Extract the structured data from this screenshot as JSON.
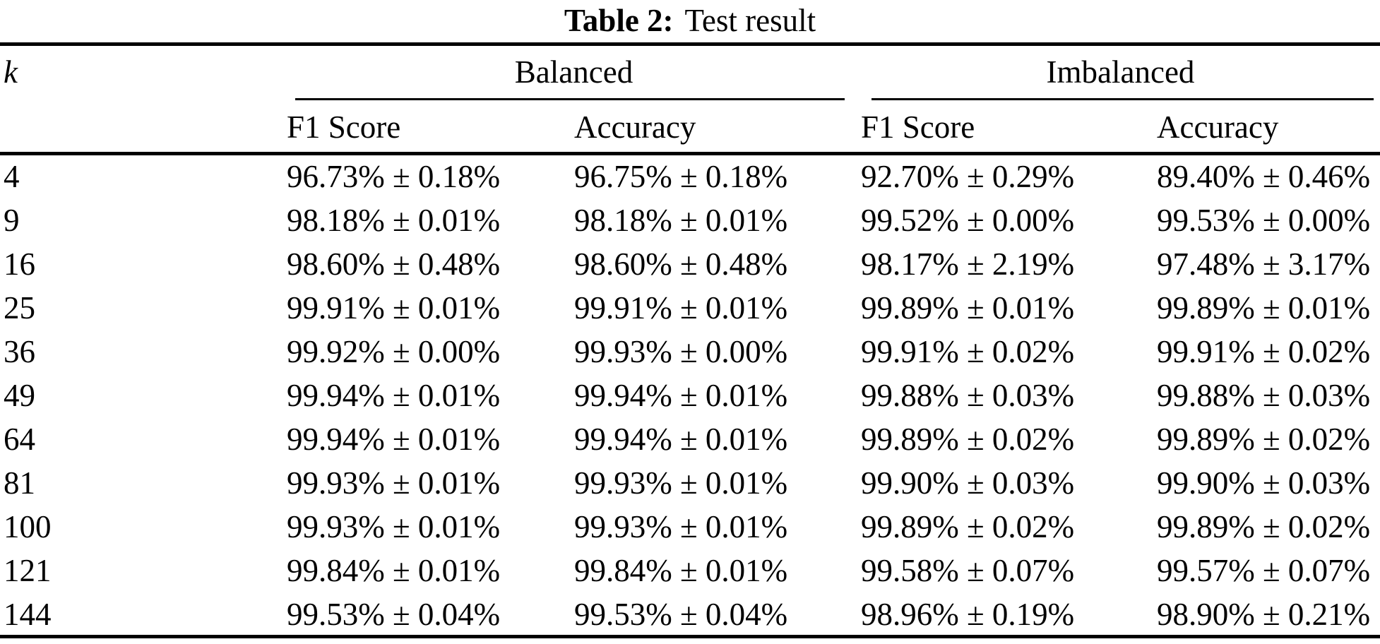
{
  "caption": {
    "label": "Table 2:",
    "text": "Test result"
  },
  "table": {
    "k_header": "k",
    "groups": [
      {
        "label": "Balanced"
      },
      {
        "label": "Imbalanced"
      }
    ],
    "columns": [
      "F1 Score",
      "Accuracy",
      "F1 Score",
      "Accuracy"
    ],
    "rows": [
      {
        "k": "4",
        "values": [
          "96.73% ± 0.18%",
          "96.75% ± 0.18%",
          "92.70% ± 0.29%",
          "89.40% ± 0.46%"
        ]
      },
      {
        "k": "9",
        "values": [
          "98.18% ± 0.01%",
          "98.18% ± 0.01%",
          "99.52% ± 0.00%",
          "99.53% ± 0.00%"
        ]
      },
      {
        "k": "16",
        "values": [
          "98.60% ± 0.48%",
          "98.60% ± 0.48%",
          "98.17% ± 2.19%",
          "97.48% ± 3.17%"
        ]
      },
      {
        "k": "25",
        "values": [
          "99.91% ± 0.01%",
          "99.91% ± 0.01%",
          "99.89% ± 0.01%",
          "99.89% ± 0.01%"
        ]
      },
      {
        "k": "36",
        "values": [
          "99.92% ± 0.00%",
          "99.93% ± 0.00%",
          "99.91% ± 0.02%",
          "99.91% ± 0.02%"
        ]
      },
      {
        "k": "49",
        "values": [
          "99.94% ± 0.01%",
          "99.94% ± 0.01%",
          "99.88% ± 0.03%",
          "99.88% ± 0.03%"
        ]
      },
      {
        "k": "64",
        "values": [
          "99.94% ± 0.01%",
          "99.94% ± 0.01%",
          "99.89% ± 0.02%",
          "99.89% ± 0.02%"
        ]
      },
      {
        "k": "81",
        "values": [
          "99.93% ± 0.01%",
          "99.93% ± 0.01%",
          "99.90% ± 0.03%",
          "99.90% ± 0.03%"
        ]
      },
      {
        "k": "100",
        "values": [
          "99.93% ± 0.01%",
          "99.93% ± 0.01%",
          "99.89% ± 0.02%",
          "99.89% ± 0.02%"
        ]
      },
      {
        "k": "121",
        "values": [
          "99.84% ± 0.01%",
          "99.84% ± 0.01%",
          "99.58% ± 0.07%",
          "99.57% ± 0.07%"
        ]
      },
      {
        "k": "144",
        "values": [
          "99.53% ± 0.04%",
          "99.53% ± 0.04%",
          "98.96% ± 0.19%",
          "98.90% ± 0.21%"
        ]
      }
    ]
  }
}
